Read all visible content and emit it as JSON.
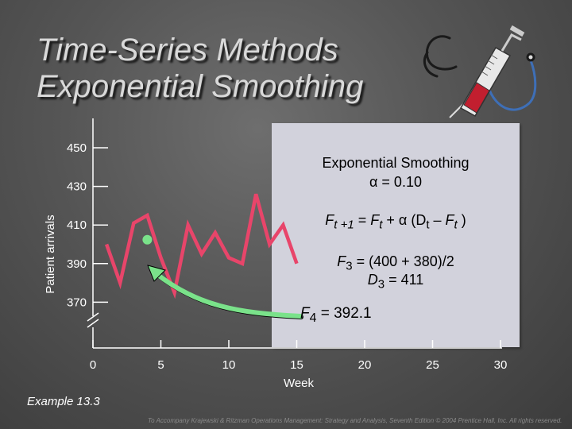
{
  "slide": {
    "title_line1": "Time-Series Methods",
    "title_line2": "Exponential Smoothing",
    "example": "Example 13.3",
    "footer": "To Accompany Krajewski & Ritzman Operations Management: Strategy and Analysis, Seventh Edition © 2004 Prentice Hall, Inc. All rights reserved."
  },
  "info_box": {
    "heading": "Exponential Smoothing",
    "alpha_line": "α = 0.10",
    "formula": {
      "F1": "F",
      "s1": "t +1",
      "eq": " = ",
      "F2": "F",
      "s2": "t",
      "mid": " + α (D",
      "s3": "t",
      "minus": " – ",
      "F3": "F",
      "s4": "t",
      "close": " )"
    },
    "calc": {
      "F": "F",
      "sub": "3",
      "rest": " = (400 + 380)/2"
    },
    "demand": {
      "D": "D",
      "sub": "3",
      "rest": " = 411"
    },
    "forecast": {
      "F": "F",
      "sub": "4",
      "rest": " =  392.1"
    }
  },
  "colors": {
    "series": "#e8456a",
    "arrow": "#7ae28a",
    "box": "#d2d2dc",
    "text": "#ffffff"
  },
  "icons": [
    "stethoscope-icon",
    "syringe-icon"
  ],
  "chart_data": {
    "type": "line",
    "xlabel": "Week",
    "ylabel": "Patient arrivals",
    "x_ticks": [
      "0",
      "5",
      "10",
      "15",
      "20",
      "25",
      "30"
    ],
    "y_ticks": [
      "450",
      "430",
      "410",
      "390",
      "370"
    ],
    "xlim": [
      0,
      30
    ],
    "ylim": [
      370,
      450
    ],
    "axis_break": "y-axis below 370",
    "series": [
      {
        "x": [
          1,
          2,
          3,
          4,
          5,
          6,
          7,
          8,
          9,
          10,
          11,
          12,
          13,
          14,
          15
        ],
        "values": [
          400,
          380,
          411,
          415,
          393,
          375,
          410,
          395,
          406,
          393,
          390,
          426,
          400,
          410,
          390
        ]
      }
    ],
    "highlight_point": {
      "x": 4,
      "y": 392.1,
      "label": "F4 forecast"
    }
  }
}
